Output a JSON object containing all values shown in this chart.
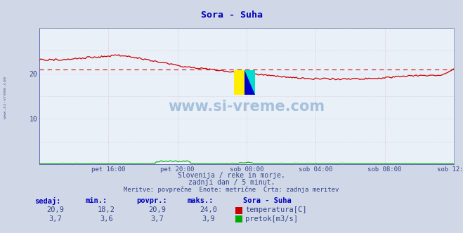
{
  "title": "Sora - Suha",
  "bg_color": "#d0d8e8",
  "plot_bg_color": "#eaf0f8",
  "grid_color": "#c8d0e0",
  "x_labels": [
    "pet 16:00",
    "pet 20:00",
    "sob 00:00",
    "sob 04:00",
    "sob 08:00",
    "sob 12:00"
  ],
  "y_min": 0,
  "y_max": 30,
  "avg_temp": 20.9,
  "min_temp": 18.2,
  "max_temp": 24.0,
  "min_flow": 3.6,
  "max_flow": 3.9,
  "temp_color": "#cc0000",
  "flow_color": "#00aa00",
  "dashed_line_value": 20.9,
  "subtitle1": "Slovenija / reke in morje.",
  "subtitle2": "zadnji dan / 5 minut.",
  "subtitle3": "Meritve: povprečne  Enote: metrične  Črta: zadnja meritev",
  "watermark": "www.si-vreme.com",
  "left_label": "www.si-vreme.com",
  "table_headers": [
    "sedaj:",
    "min.:",
    "povpr.:",
    "maks.:"
  ],
  "table_temp": [
    "20,9",
    "18,2",
    "20,9",
    "24,0"
  ],
  "table_flow": [
    "3,7",
    "3,6",
    "3,7",
    "3,9"
  ],
  "legend_title": "Sora - Suha",
  "legend_temp": "temperatura[C]",
  "legend_flow": "pretok[m3/s]"
}
